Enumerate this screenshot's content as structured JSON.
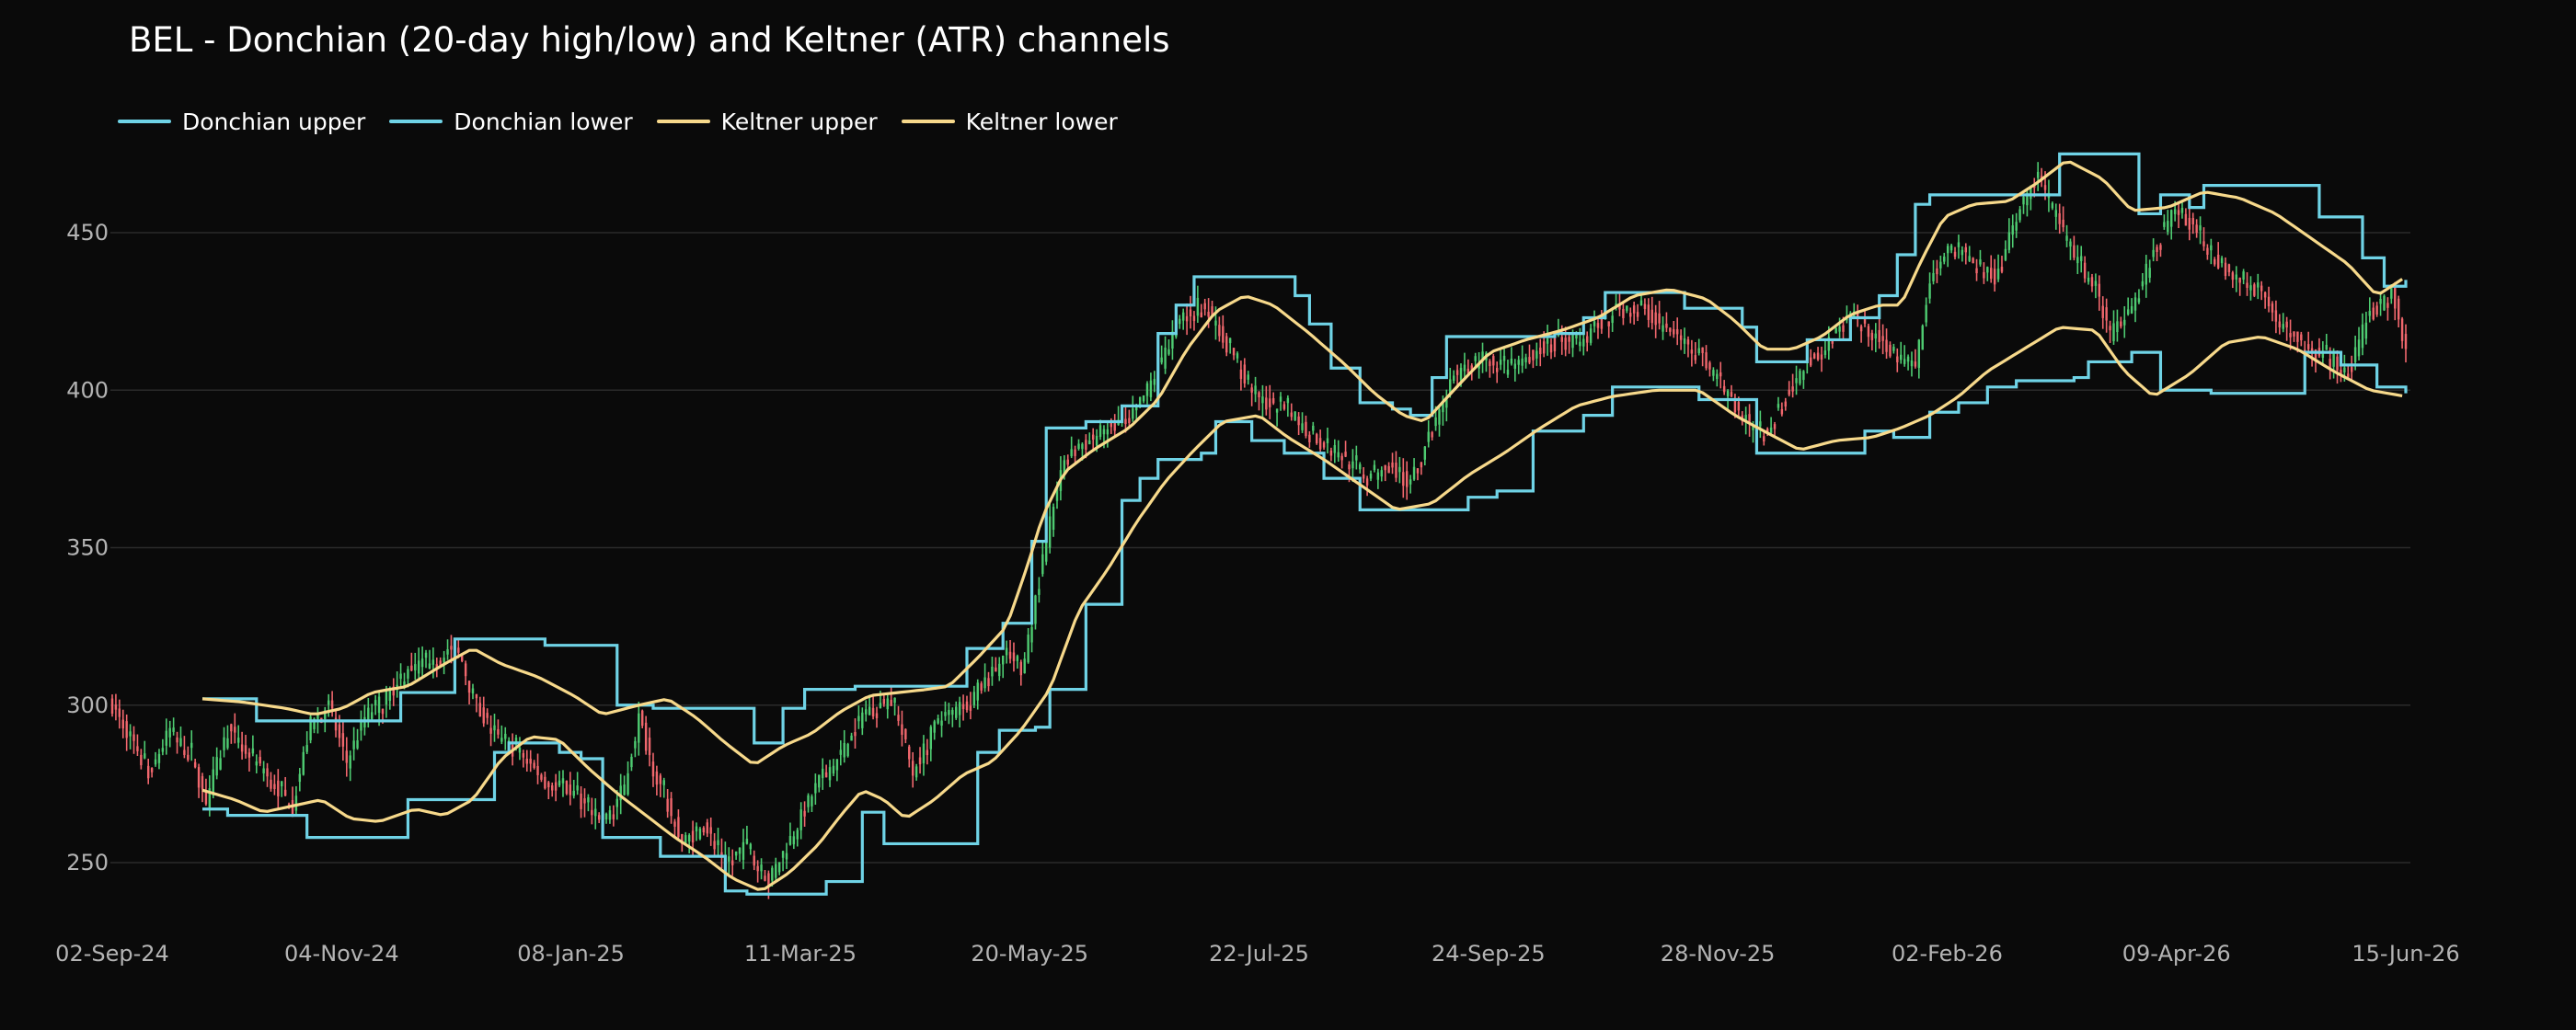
{
  "chart_data": {
    "type": "candlestick",
    "title": "BEL - Donchian (20-day high/low) and Keltner (ATR) channels",
    "xlabel": "",
    "ylabel": "",
    "x_ticks": [
      "02-Sep-24",
      "04-Nov-24",
      "08-Jan-25",
      "11-Mar-25",
      "20-May-25",
      "22-Jul-25",
      "24-Sep-25",
      "28-Nov-25",
      "02-Feb-26",
      "09-Apr-26",
      "15-Jun-26"
    ],
    "y_ticks": [
      250,
      300,
      350,
      400,
      450
    ],
    "ylim": [
      232,
      478
    ],
    "grid": "horizontal",
    "legend_position": "top-left",
    "colors": {
      "background": "#0a0a0a",
      "up": "#4ecb71",
      "down": "#f0676d",
      "donchian": "#6fd3e6",
      "keltner": "#f7d98b",
      "grid": "#2a2a2a",
      "tick_text": "#b4b4b4"
    },
    "series": [
      {
        "name": "Donchian upper",
        "color": "#6fd3e6"
      },
      {
        "name": "Donchian lower",
        "color": "#6fd3e6"
      },
      {
        "name": "Keltner upper",
        "color": "#f7d98b"
      },
      {
        "name": "Keltner lower",
        "color": "#f7d98b"
      }
    ],
    "price_path": [
      [
        0,
        300
      ],
      [
        5,
        290
      ],
      [
        10,
        278
      ],
      [
        16,
        292
      ],
      [
        22,
        283
      ],
      [
        26,
        270
      ],
      [
        32,
        292
      ],
      [
        38,
        284
      ],
      [
        44,
        276
      ],
      [
        50,
        268
      ],
      [
        55,
        294
      ],
      [
        60,
        300
      ],
      [
        65,
        282
      ],
      [
        70,
        296
      ],
      [
        76,
        303
      ],
      [
        82,
        311
      ],
      [
        88,
        314
      ],
      [
        96,
        318
      ],
      [
        100,
        302
      ],
      [
        106,
        290
      ],
      [
        114,
        284
      ],
      [
        120,
        276
      ],
      [
        128,
        272
      ],
      [
        136,
        262
      ],
      [
        142,
        274
      ],
      [
        146,
        296
      ],
      [
        150,
        280
      ],
      [
        158,
        256
      ],
      [
        164,
        262
      ],
      [
        170,
        250
      ],
      [
        176,
        255
      ],
      [
        182,
        244
      ],
      [
        190,
        262
      ],
      [
        196,
        276
      ],
      [
        202,
        284
      ],
      [
        208,
        297
      ],
      [
        216,
        302
      ],
      [
        222,
        279
      ],
      [
        228,
        293
      ],
      [
        236,
        300
      ],
      [
        242,
        307
      ],
      [
        248,
        316
      ],
      [
        252,
        310
      ],
      [
        256,
        333
      ],
      [
        260,
        358
      ],
      [
        264,
        378
      ],
      [
        270,
        383
      ],
      [
        276,
        388
      ],
      [
        282,
        390
      ],
      [
        286,
        398
      ],
      [
        292,
        411
      ],
      [
        296,
        422
      ],
      [
        302,
        428
      ],
      [
        306,
        421
      ],
      [
        312,
        408
      ],
      [
        318,
        397
      ],
      [
        326,
        393
      ],
      [
        332,
        386
      ],
      [
        340,
        380
      ],
      [
        348,
        372
      ],
      [
        354,
        376
      ],
      [
        360,
        370
      ],
      [
        366,
        388
      ],
      [
        372,
        404
      ],
      [
        380,
        410
      ],
      [
        388,
        406
      ],
      [
        394,
        412
      ],
      [
        400,
        415
      ],
      [
        408,
        416
      ],
      [
        416,
        425
      ],
      [
        424,
        426
      ],
      [
        432,
        418
      ],
      [
        440,
        412
      ],
      [
        446,
        402
      ],
      [
        452,
        391
      ],
      [
        458,
        386
      ],
      [
        464,
        398
      ],
      [
        470,
        409
      ],
      [
        476,
        415
      ],
      [
        482,
        423
      ],
      [
        488,
        418
      ],
      [
        494,
        412
      ],
      [
        500,
        408
      ],
      [
        504,
        435
      ],
      [
        510,
        446
      ],
      [
        516,
        440
      ],
      [
        522,
        436
      ],
      [
        528,
        455
      ],
      [
        534,
        468
      ],
      [
        540,
        452
      ],
      [
        546,
        438
      ],
      [
        550,
        432
      ],
      [
        554,
        418
      ],
      [
        560,
        424
      ],
      [
        566,
        445
      ],
      [
        572,
        458
      ],
      [
        578,
        451
      ],
      [
        584,
        440
      ],
      [
        590,
        436
      ],
      [
        596,
        430
      ],
      [
        602,
        420
      ],
      [
        608,
        413
      ],
      [
        614,
        410
      ],
      [
        620,
        407
      ],
      [
        626,
        424
      ],
      [
        632,
        431
      ],
      [
        636,
        414
      ]
    ],
    "donchian_upper_steps": [
      [
        25,
        302
      ],
      [
        40,
        295
      ],
      [
        67,
        295
      ],
      [
        80,
        304
      ],
      [
        95,
        321
      ],
      [
        115,
        321
      ],
      [
        120,
        319
      ],
      [
        132,
        319
      ],
      [
        140,
        300
      ],
      [
        150,
        299
      ],
      [
        170,
        299
      ],
      [
        178,
        288
      ],
      [
        186,
        299
      ],
      [
        192,
        305
      ],
      [
        206,
        306
      ],
      [
        232,
        306
      ],
      [
        237,
        318
      ],
      [
        247,
        326
      ],
      [
        255,
        352
      ],
      [
        259,
        388
      ],
      [
        270,
        390
      ],
      [
        280,
        395
      ],
      [
        290,
        418
      ],
      [
        295,
        427
      ],
      [
        300,
        436
      ],
      [
        320,
        436
      ],
      [
        328,
        430
      ],
      [
        332,
        421
      ],
      [
        338,
        407
      ],
      [
        346,
        396
      ],
      [
        355,
        394
      ],
      [
        360,
        392
      ],
      [
        366,
        404
      ],
      [
        370,
        417
      ],
      [
        392,
        417
      ],
      [
        400,
        418
      ],
      [
        408,
        423
      ],
      [
        414,
        431
      ],
      [
        428,
        431
      ],
      [
        436,
        426
      ],
      [
        452,
        420
      ],
      [
        456,
        409
      ],
      [
        470,
        416
      ],
      [
        482,
        423
      ],
      [
        490,
        430
      ],
      [
        495,
        443
      ],
      [
        500,
        459
      ],
      [
        504,
        462
      ],
      [
        534,
        462
      ],
      [
        540,
        475
      ],
      [
        558,
        475
      ],
      [
        562,
        456
      ],
      [
        568,
        462
      ],
      [
        576,
        458
      ],
      [
        580,
        465
      ],
      [
        606,
        465
      ],
      [
        612,
        455
      ],
      [
        624,
        442
      ],
      [
        630,
        433
      ],
      [
        636,
        435
      ]
    ],
    "donchian_lower_steps": [
      [
        25,
        267
      ],
      [
        31,
        267
      ],
      [
        32,
        265
      ],
      [
        52,
        265
      ],
      [
        54,
        258
      ],
      [
        80,
        258
      ],
      [
        82,
        270
      ],
      [
        100,
        270
      ],
      [
        106,
        285
      ],
      [
        110,
        288
      ],
      [
        124,
        285
      ],
      [
        130,
        283
      ],
      [
        136,
        258
      ],
      [
        150,
        258
      ],
      [
        152,
        252
      ],
      [
        165,
        252
      ],
      [
        170,
        241
      ],
      [
        176,
        240
      ],
      [
        196,
        240
      ],
      [
        198,
        244
      ],
      [
        205,
        244
      ],
      [
        208,
        266
      ],
      [
        214,
        256
      ],
      [
        238,
        256
      ],
      [
        240,
        285
      ],
      [
        246,
        292
      ],
      [
        256,
        293
      ],
      [
        260,
        305
      ],
      [
        268,
        305
      ],
      [
        270,
        332
      ],
      [
        280,
        365
      ],
      [
        285,
        372
      ],
      [
        290,
        378
      ],
      [
        302,
        380
      ],
      [
        306,
        390
      ],
      [
        316,
        384
      ],
      [
        325,
        380
      ],
      [
        336,
        372
      ],
      [
        346,
        362
      ],
      [
        372,
        362
      ],
      [
        376,
        366
      ],
      [
        384,
        368
      ],
      [
        394,
        387
      ],
      [
        408,
        392
      ],
      [
        416,
        401
      ],
      [
        432,
        401
      ],
      [
        440,
        397
      ],
      [
        456,
        380
      ],
      [
        484,
        380
      ],
      [
        486,
        387
      ],
      [
        494,
        385
      ],
      [
        504,
        393
      ],
      [
        512,
        396
      ],
      [
        520,
        401
      ],
      [
        528,
        403
      ],
      [
        544,
        404
      ],
      [
        548,
        409
      ],
      [
        560,
        412
      ],
      [
        568,
        400
      ],
      [
        582,
        399
      ],
      [
        604,
        399
      ],
      [
        608,
        412
      ],
      [
        618,
        408
      ],
      [
        628,
        401
      ],
      [
        636,
        399
      ]
    ],
    "keltner_upper": [
      [
        25,
        302
      ],
      [
        36,
        301
      ],
      [
        48,
        299
      ],
      [
        56,
        297
      ],
      [
        64,
        299
      ],
      [
        72,
        304
      ],
      [
        82,
        306
      ],
      [
        92,
        313
      ],
      [
        100,
        318
      ],
      [
        108,
        313
      ],
      [
        118,
        309
      ],
      [
        128,
        303
      ],
      [
        136,
        297
      ],
      [
        146,
        300
      ],
      [
        154,
        302
      ],
      [
        162,
        296
      ],
      [
        170,
        288
      ],
      [
        178,
        281
      ],
      [
        186,
        287
      ],
      [
        194,
        291
      ],
      [
        202,
        298
      ],
      [
        210,
        303
      ],
      [
        218,
        304
      ],
      [
        226,
        305
      ],
      [
        232,
        306
      ],
      [
        240,
        315
      ],
      [
        248,
        325
      ],
      [
        254,
        345
      ],
      [
        258,
        360
      ],
      [
        264,
        374
      ],
      [
        272,
        381
      ],
      [
        282,
        388
      ],
      [
        290,
        397
      ],
      [
        298,
        413
      ],
      [
        306,
        425
      ],
      [
        314,
        430
      ],
      [
        322,
        427
      ],
      [
        332,
        418
      ],
      [
        342,
        408
      ],
      [
        350,
        399
      ],
      [
        358,
        392
      ],
      [
        364,
        390
      ],
      [
        372,
        400
      ],
      [
        382,
        412
      ],
      [
        392,
        416
      ],
      [
        402,
        419
      ],
      [
        412,
        423
      ],
      [
        422,
        430
      ],
      [
        432,
        432
      ],
      [
        442,
        429
      ],
      [
        450,
        422
      ],
      [
        458,
        413
      ],
      [
        466,
        413
      ],
      [
        474,
        417
      ],
      [
        482,
        424
      ],
      [
        490,
        427
      ],
      [
        496,
        427
      ],
      [
        502,
        442
      ],
      [
        508,
        455
      ],
      [
        516,
        459
      ],
      [
        526,
        460
      ],
      [
        534,
        466
      ],
      [
        542,
        473
      ],
      [
        552,
        467
      ],
      [
        560,
        457
      ],
      [
        570,
        458
      ],
      [
        580,
        463
      ],
      [
        590,
        461
      ],
      [
        600,
        456
      ],
      [
        610,
        448
      ],
      [
        620,
        440
      ],
      [
        628,
        430
      ],
      [
        636,
        436
      ]
    ],
    "keltner_lower": [
      [
        25,
        273
      ],
      [
        34,
        270
      ],
      [
        42,
        266
      ],
      [
        50,
        268
      ],
      [
        58,
        270
      ],
      [
        66,
        264
      ],
      [
        74,
        263
      ],
      [
        84,
        267
      ],
      [
        92,
        265
      ],
      [
        100,
        270
      ],
      [
        108,
        283
      ],
      [
        116,
        290
      ],
      [
        124,
        289
      ],
      [
        132,
        280
      ],
      [
        140,
        272
      ],
      [
        148,
        265
      ],
      [
        156,
        258
      ],
      [
        164,
        252
      ],
      [
        172,
        245
      ],
      [
        180,
        241
      ],
      [
        188,
        247
      ],
      [
        196,
        256
      ],
      [
        202,
        265
      ],
      [
        208,
        273
      ],
      [
        214,
        270
      ],
      [
        220,
        264
      ],
      [
        228,
        270
      ],
      [
        236,
        278
      ],
      [
        244,
        282
      ],
      [
        252,
        292
      ],
      [
        260,
        305
      ],
      [
        268,
        330
      ],
      [
        276,
        343
      ],
      [
        284,
        358
      ],
      [
        292,
        371
      ],
      [
        300,
        381
      ],
      [
        308,
        390
      ],
      [
        318,
        392
      ],
      [
        326,
        385
      ],
      [
        336,
        378
      ],
      [
        346,
        370
      ],
      [
        356,
        362
      ],
      [
        366,
        364
      ],
      [
        376,
        373
      ],
      [
        386,
        380
      ],
      [
        396,
        388
      ],
      [
        406,
        395
      ],
      [
        416,
        398
      ],
      [
        428,
        400
      ],
      [
        440,
        400
      ],
      [
        450,
        392
      ],
      [
        458,
        387
      ],
      [
        468,
        381
      ],
      [
        478,
        384
      ],
      [
        488,
        385
      ],
      [
        496,
        388
      ],
      [
        504,
        392
      ],
      [
        512,
        398
      ],
      [
        520,
        406
      ],
      [
        530,
        413
      ],
      [
        540,
        420
      ],
      [
        550,
        419
      ],
      [
        558,
        406
      ],
      [
        566,
        398
      ],
      [
        576,
        405
      ],
      [
        586,
        415
      ],
      [
        596,
        417
      ],
      [
        606,
        413
      ],
      [
        616,
        406
      ],
      [
        626,
        400
      ],
      [
        636,
        398
      ]
    ]
  }
}
